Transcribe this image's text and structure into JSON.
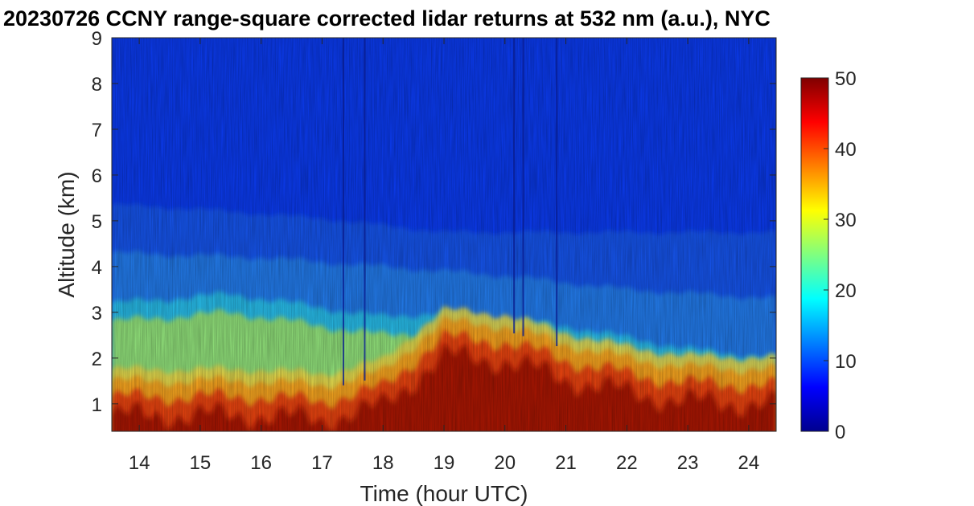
{
  "chart_data": {
    "type": "heatmap",
    "title": "20230726 CCNY range-square corrected lidar returns at 532 nm (a.u.), NYC",
    "xlabel": "Time (hour UTC)",
    "ylabel": "Altitude (km)",
    "xlim": [
      13.55,
      24.45
    ],
    "ylim": [
      0.4,
      9
    ],
    "xticks": [
      14,
      15,
      16,
      17,
      18,
      19,
      20,
      21,
      22,
      23,
      24
    ],
    "yticks": [
      1,
      2,
      3,
      4,
      5,
      6,
      7,
      8,
      9
    ],
    "colorbar": {
      "colormap": "jet",
      "range": [
        0,
        50
      ],
      "ticks": [
        0,
        10,
        20,
        30,
        40,
        50
      ]
    },
    "features": {
      "boundary_layer_top_km": [
        {
          "time": 13.6,
          "alt": 1.6
        },
        {
          "time": 16.0,
          "alt": 1.6
        },
        {
          "time": 17.0,
          "alt": 1.5
        },
        {
          "time": 18.0,
          "alt": 1.8
        },
        {
          "time": 18.7,
          "alt": 2.6
        },
        {
          "time": 19.0,
          "alt": 2.9
        },
        {
          "time": 20.0,
          "alt": 2.8
        },
        {
          "time": 21.0,
          "alt": 2.4
        },
        {
          "time": 22.0,
          "alt": 2.1
        },
        {
          "time": 23.0,
          "alt": 1.9
        },
        {
          "time": 24.45,
          "alt": 1.85
        }
      ],
      "aerosol_layer_tops_km": [
        {
          "time": 13.6,
          "alt": 3.1
        },
        {
          "time": 15.5,
          "alt": 3.3
        },
        {
          "time": 17.0,
          "alt": 3.0
        },
        {
          "time": 18.0,
          "alt": 2.8
        },
        {
          "time": 19.0,
          "alt": 2.9
        },
        {
          "time": 21.0,
          "alt": 2.6
        },
        {
          "time": 23.0,
          "alt": 2.1
        },
        {
          "time": 24.45,
          "alt": 1.9
        }
      ],
      "residual_layer_km": [
        {
          "time": 13.6,
          "alt": 4.1
        },
        {
          "time": 16.0,
          "alt": 4.0
        },
        {
          "time": 18.0,
          "alt": 3.8
        },
        {
          "time": 20.0,
          "alt": 3.6
        },
        {
          "time": 22.0,
          "alt": 3.3
        },
        {
          "time": 24.45,
          "alt": 3.1
        }
      ],
      "upper_layer_km": [
        {
          "time": 13.6,
          "alt": 5.2
        },
        {
          "time": 15.0,
          "alt": 5.1
        },
        {
          "time": 17.0,
          "alt": 4.9
        },
        {
          "time": 19.0,
          "alt": 4.6
        }
      ],
      "dark_vertical_streaks_hours": [
        17.35,
        17.7,
        20.15,
        20.3,
        20.85
      ]
    }
  }
}
